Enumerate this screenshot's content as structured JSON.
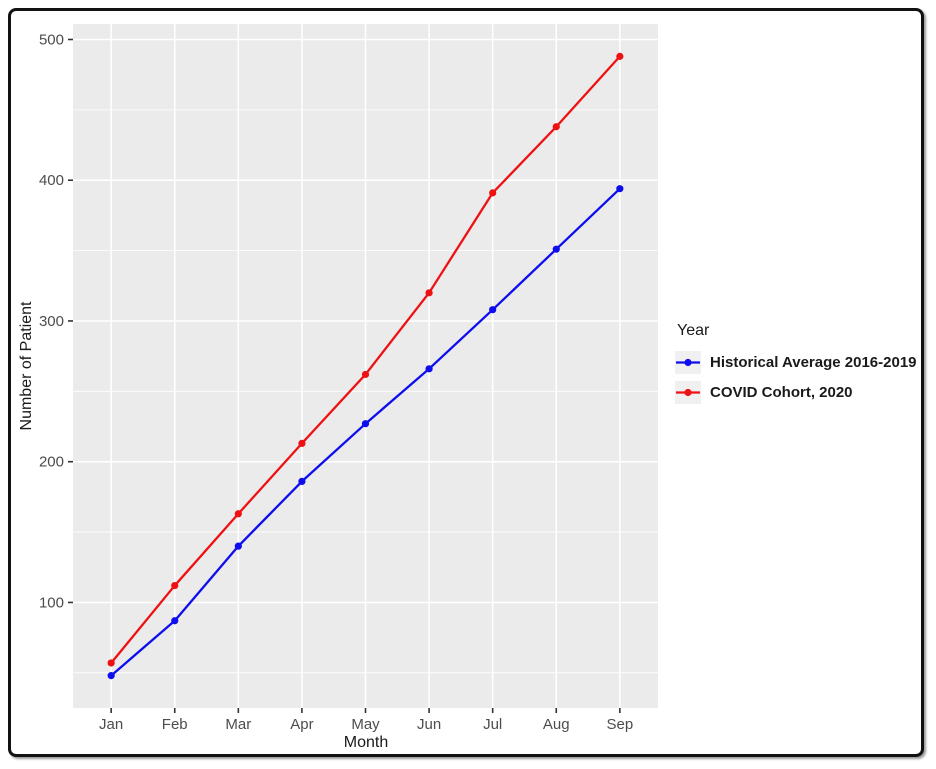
{
  "legend": {
    "title": "Year"
  },
  "chart_data": {
    "type": "line",
    "title": "",
    "xlabel": "Month",
    "ylabel": "Number of Patient",
    "categories": [
      "Jan",
      "Feb",
      "Mar",
      "Apr",
      "May",
      "Jun",
      "Jul",
      "Aug",
      "Sep"
    ],
    "series": [
      {
        "name": "Historical Average 2016-2019",
        "color": "#0d0dee",
        "values": [
          48,
          87,
          140,
          186,
          227,
          266,
          308,
          351,
          394
        ]
      },
      {
        "name": "COVID Cohort, 2020",
        "color": "#ee1113",
        "values": [
          57,
          112,
          163,
          213,
          262,
          320,
          391,
          438,
          488
        ]
      }
    ],
    "yticks": [
      100,
      200,
      300,
      400,
      500
    ],
    "ylim": [
      25,
      511
    ],
    "grid": "major-and-minor-horizontal-plus-vertical-major",
    "legend_position": "right-middle",
    "panel_color": "#ebebeb",
    "grid_color": "#ffffff",
    "tick_label_color": "#4d4d4d"
  }
}
